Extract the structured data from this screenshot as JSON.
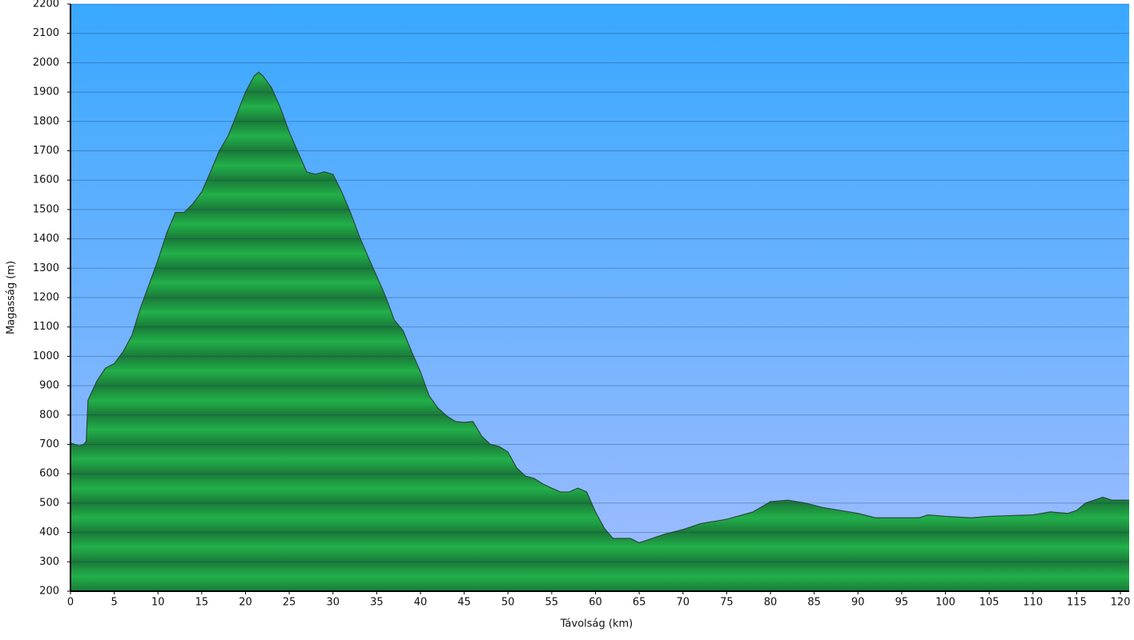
{
  "chart_data": {
    "type": "area",
    "xlabel": "Távolság   (km)",
    "ylabel": "Magasság (m)",
    "x": [
      0,
      1,
      1.5,
      1.8,
      2,
      3,
      4,
      5,
      6,
      7,
      8,
      9,
      10,
      11,
      12,
      13,
      14,
      15,
      16,
      17,
      18,
      19,
      20,
      21,
      21.5,
      22,
      23,
      24,
      25,
      26,
      27,
      28,
      29,
      30,
      31,
      32,
      33,
      34,
      35,
      36,
      37,
      38,
      39,
      40,
      41,
      42,
      43,
      44,
      45,
      46,
      47,
      48,
      49,
      50,
      51,
      52,
      53,
      54,
      55,
      56,
      57,
      58,
      59,
      60,
      61,
      62,
      63,
      64,
      65,
      66,
      67,
      68,
      70,
      72,
      75,
      78,
      80,
      82,
      84,
      86,
      88,
      90,
      92,
      95,
      97,
      98,
      100,
      103,
      105,
      110,
      112,
      114,
      115,
      116,
      117,
      118,
      119,
      120,
      121
    ],
    "values": [
      705,
      695,
      700,
      710,
      850,
      915,
      960,
      975,
      1015,
      1070,
      1165,
      1246,
      1328,
      1420,
      1490,
      1490,
      1520,
      1560,
      1628,
      1700,
      1750,
      1824,
      1900,
      1955,
      1968,
      1955,
      1914,
      1846,
      1764,
      1696,
      1628,
      1620,
      1628,
      1620,
      1560,
      1490,
      1410,
      1340,
      1273,
      1205,
      1124,
      1088,
      1015,
      947,
      865,
      824,
      797,
      778,
      775,
      778,
      728,
      700,
      693,
      674,
      620,
      592,
      584,
      565,
      551,
      538,
      538,
      551,
      538,
      470,
      415,
      380,
      380,
      380,
      365,
      375,
      385,
      395,
      410,
      430,
      445,
      470,
      505,
      510,
      500,
      485,
      475,
      465,
      450,
      450,
      450,
      460,
      455,
      450,
      455,
      460,
      470,
      465,
      475,
      500,
      510,
      520,
      510,
      510,
      510
    ],
    "xlim": [
      0,
      121
    ],
    "ylim": [
      200,
      2200
    ],
    "xticks": [
      0,
      5,
      10,
      15,
      20,
      25,
      30,
      35,
      40,
      45,
      50,
      55,
      60,
      65,
      70,
      75,
      80,
      85,
      90,
      95,
      100,
      105,
      110,
      115,
      120
    ],
    "yticks": [
      200,
      300,
      400,
      500,
      600,
      700,
      800,
      900,
      1000,
      1100,
      1200,
      1300,
      1400,
      1500,
      1600,
      1700,
      1800,
      1900,
      2000,
      2100,
      2200
    ],
    "color": "#22b04a",
    "grid": true
  }
}
